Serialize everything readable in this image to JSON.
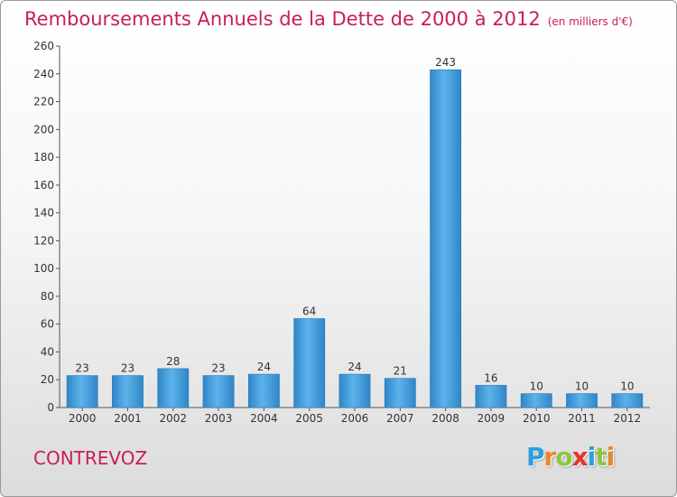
{
  "page": {
    "title": "Remboursements Annuels de la Dette de 2000 à 2012",
    "unit": "(en milliers d'€)",
    "commune": "CONTREVOZ",
    "logo": {
      "letters": [
        "P",
        "r",
        "o",
        "x",
        "i",
        "t",
        "i"
      ],
      "colors": [
        "#2e9fd8",
        "#e8892a",
        "#8cc63f",
        "#e5352b",
        "#2e9fd8",
        "#8cc63f",
        "#e8892a"
      ]
    }
  },
  "chart_data": {
    "type": "bar",
    "categories": [
      "2000",
      "2001",
      "2002",
      "2003",
      "2004",
      "2005",
      "2006",
      "2007",
      "2008",
      "2009",
      "2010",
      "2011",
      "2012"
    ],
    "values": [
      23,
      23,
      28,
      23,
      24,
      64,
      24,
      21,
      243,
      16,
      10,
      10,
      10
    ],
    "data_labels": [
      "23",
      "23",
      "28",
      "23",
      "24",
      "64",
      "24",
      "21",
      "243",
      "16",
      "10",
      "10",
      "10"
    ],
    "ylim": [
      0,
      260
    ],
    "yticks": [
      0,
      20,
      40,
      60,
      80,
      100,
      120,
      140,
      160,
      180,
      200,
      220,
      240,
      260
    ],
    "grid": false,
    "bar_color": "#3a98dc"
  }
}
